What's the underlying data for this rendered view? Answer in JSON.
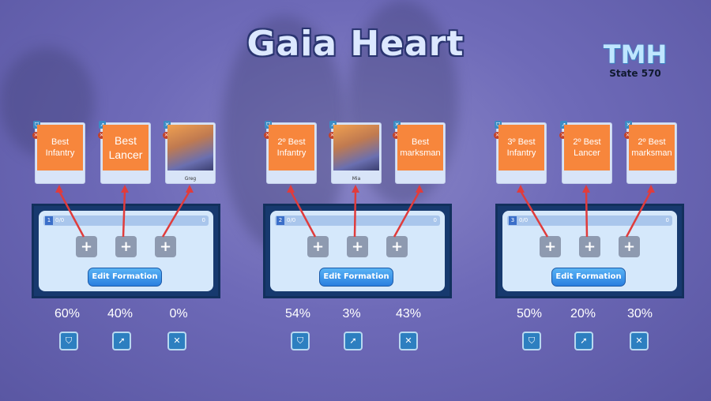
{
  "title": "Gaia Heart",
  "logo": {
    "text": "TMH",
    "subtitle": "State 570"
  },
  "colors": {
    "card_orange": "#f7863c",
    "arrow": "#e03c3c",
    "panel": "#17396e",
    "button": "#2a7fe0"
  },
  "formations": [
    {
      "number": "1",
      "troops": "0/0",
      "power": "0",
      "edit_label": "Edit Formation",
      "cards": [
        {
          "label": "Best Infantry",
          "troop_icon": "shield-icon"
        },
        {
          "label": "Best Lancer",
          "troop_icon": "lance-icon"
        },
        {
          "label": "",
          "hero_name": "Greg",
          "troop_icon": "crossbow-icon"
        }
      ],
      "ratios": [
        "60%",
        "40%",
        "0%"
      ]
    },
    {
      "number": "2",
      "troops": "0/0",
      "power": "0",
      "edit_label": "Edit Formation",
      "cards": [
        {
          "label": "2º Best Infantry",
          "troop_icon": "shield-icon"
        },
        {
          "label": "",
          "hero_name": "Mia",
          "troop_icon": "lance-icon"
        },
        {
          "label": "Best marksman",
          "troop_icon": "crossbow-icon"
        }
      ],
      "ratios": [
        "54%",
        "3%",
        "43%"
      ]
    },
    {
      "number": "3",
      "troops": "0/0",
      "power": "0",
      "edit_label": "Edit Formation",
      "cards": [
        {
          "label": "3º Best Infantry",
          "troop_icon": "shield-icon"
        },
        {
          "label": "2º Best Lancer",
          "troop_icon": "lance-icon"
        },
        {
          "label": "2º Best marksman",
          "troop_icon": "crossbow-icon"
        }
      ],
      "ratios": [
        "50%",
        "20%",
        "30%"
      ]
    }
  ]
}
